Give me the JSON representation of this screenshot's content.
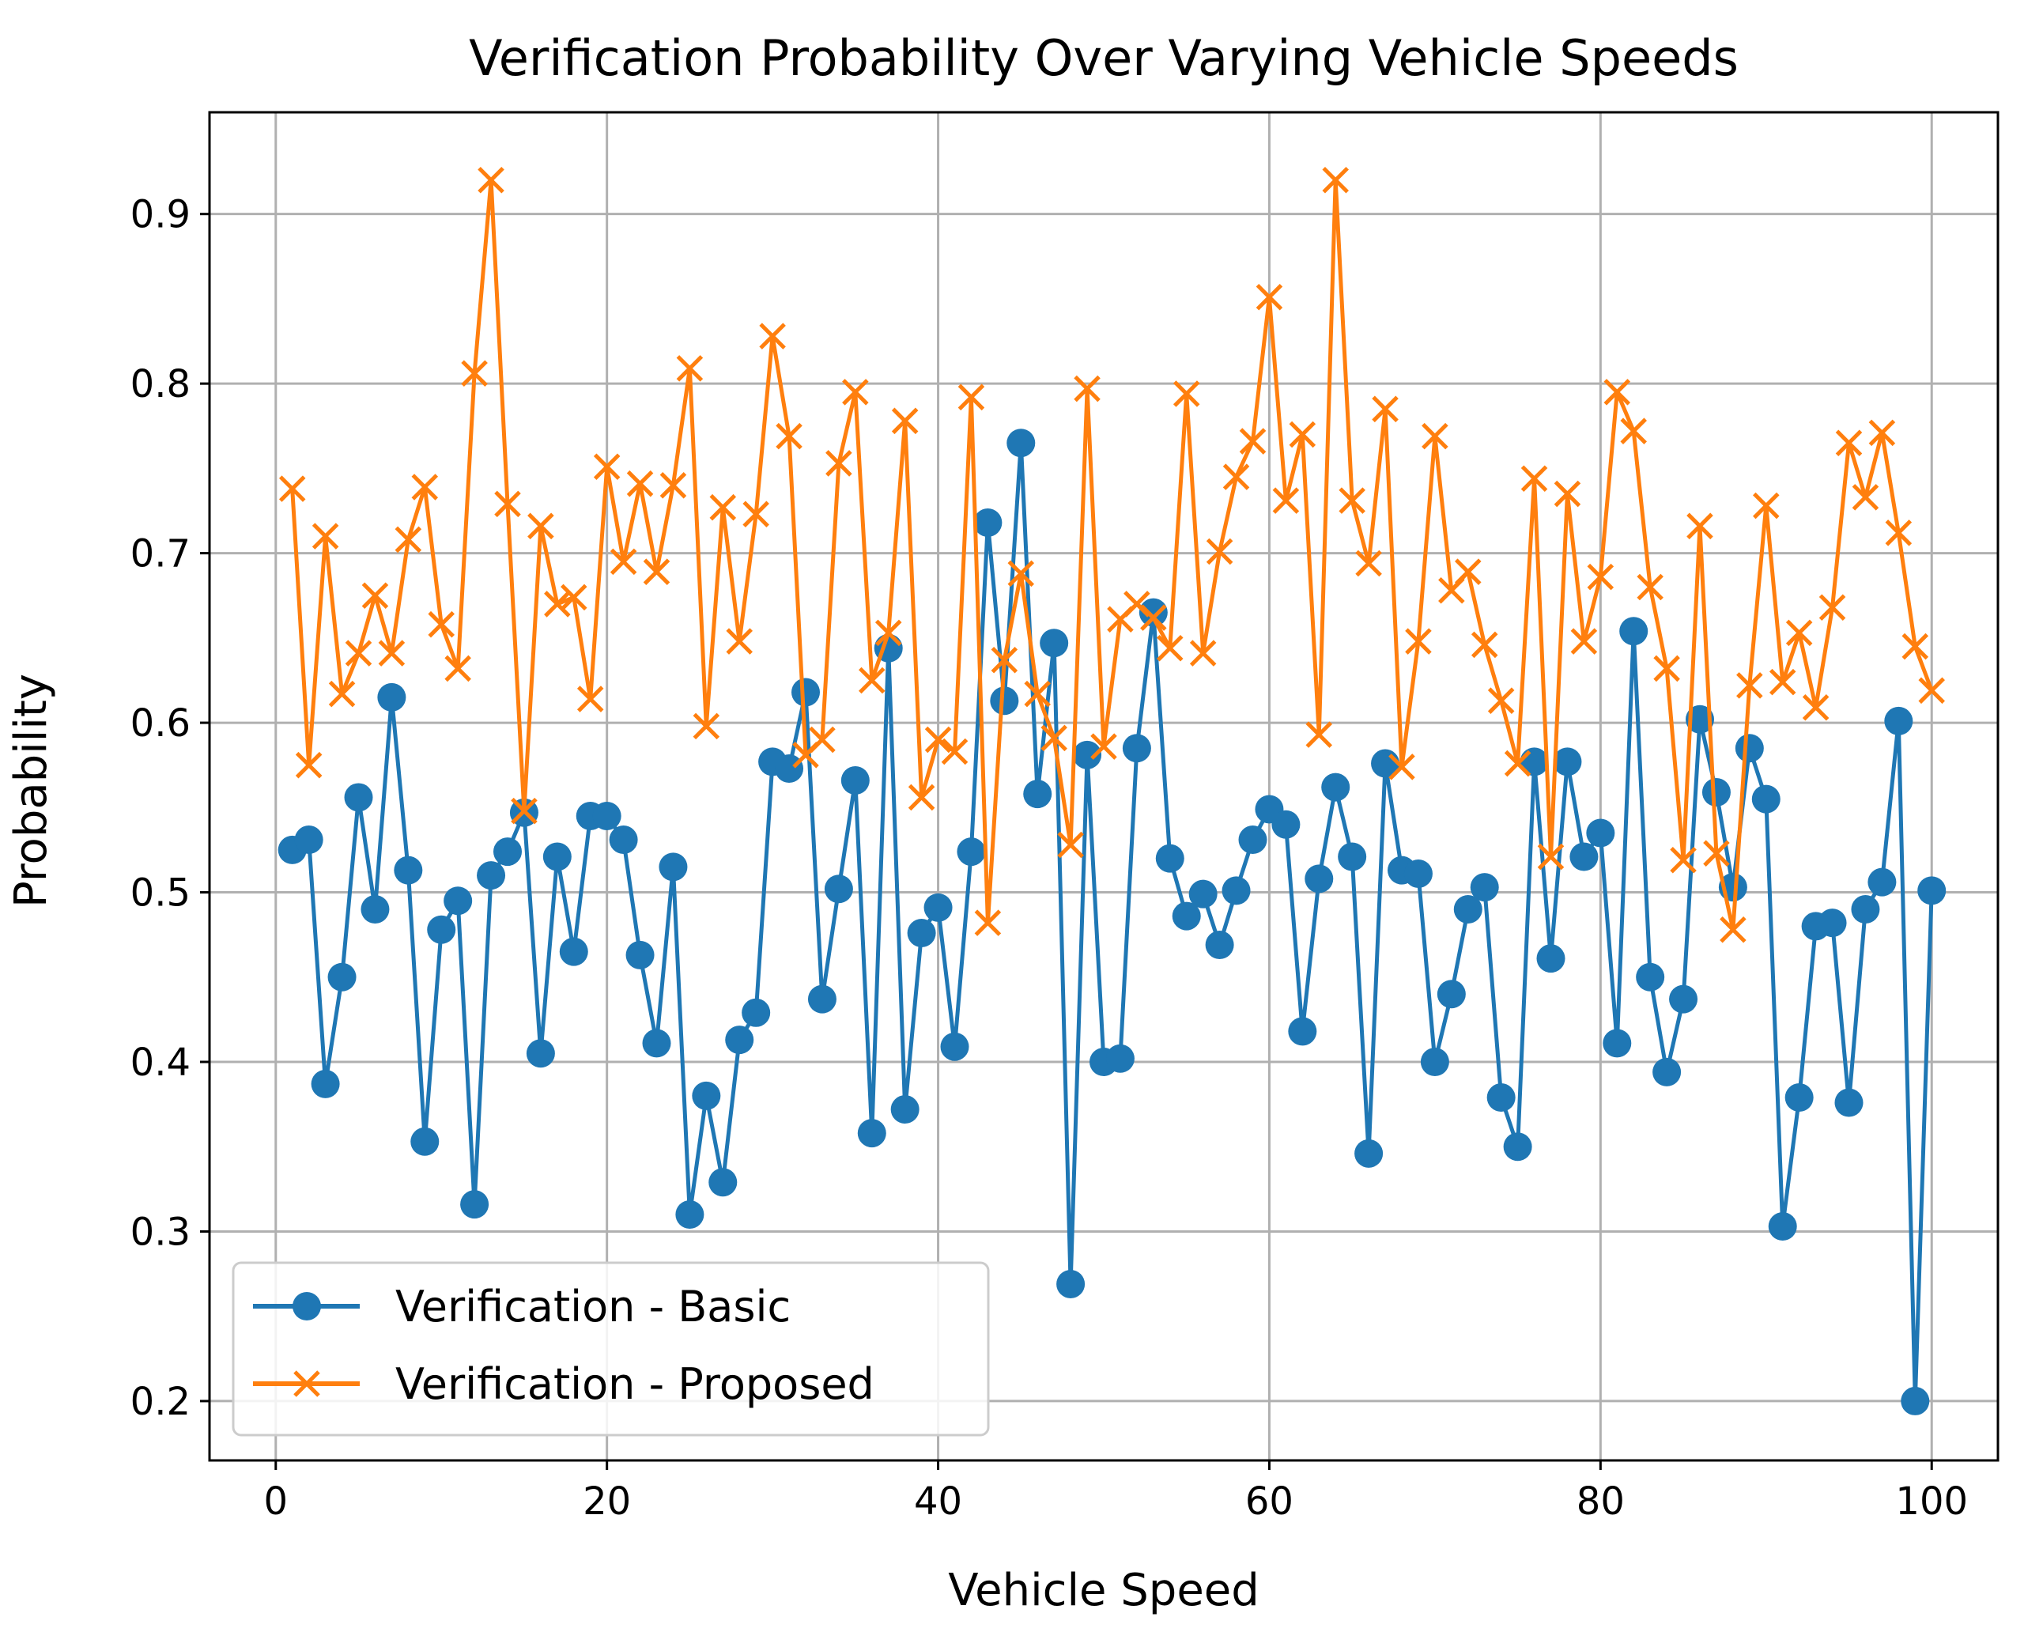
{
  "chart_data": {
    "type": "line",
    "title": "Verification Probability Over Varying Vehicle Speeds",
    "xlabel": "Vehicle Speed",
    "ylabel": "Probability",
    "xlim": [
      -4,
      104
    ],
    "ylim": [
      0.165,
      0.96
    ],
    "xticks": [
      0,
      20,
      40,
      60,
      80,
      100
    ],
    "yticks": [
      0.2,
      0.3,
      0.4,
      0.5,
      0.6,
      0.7,
      0.8,
      0.9
    ],
    "xtick_labels": [
      "0",
      "20",
      "40",
      "60",
      "80",
      "100"
    ],
    "ytick_labels": [
      "0.2",
      "0.3",
      "0.4",
      "0.5",
      "0.6",
      "0.7",
      "0.8",
      "0.9"
    ],
    "grid": true,
    "legend_position": "lower-left",
    "x": [
      1,
      2,
      3,
      4,
      5,
      6,
      7,
      8,
      9,
      10,
      11,
      12,
      13,
      14,
      15,
      16,
      17,
      18,
      19,
      20,
      21,
      22,
      23,
      24,
      25,
      26,
      27,
      28,
      29,
      30,
      31,
      32,
      33,
      34,
      35,
      36,
      37,
      38,
      39,
      40,
      41,
      42,
      43,
      44,
      45,
      46,
      47,
      48,
      49,
      50,
      51,
      52,
      53,
      54,
      55,
      56,
      57,
      58,
      59,
      60,
      61,
      62,
      63,
      64,
      65,
      66,
      67,
      68,
      69,
      70,
      71,
      72,
      73,
      74,
      75,
      76,
      77,
      78,
      79,
      80,
      81,
      82,
      83,
      84,
      85,
      86,
      87,
      88,
      89,
      90,
      91,
      92,
      93,
      94,
      95,
      96,
      97,
      98,
      99,
      100
    ],
    "series": [
      {
        "name": "Verification - Basic",
        "color": "#1f77b4",
        "marker": "circle",
        "values": [
          0.525,
          0.531,
          0.387,
          0.45,
          0.556,
          0.49,
          0.615,
          0.513,
          0.353,
          0.478,
          0.495,
          0.316,
          0.51,
          0.524,
          0.547,
          0.405,
          0.521,
          0.465,
          0.545,
          0.545,
          0.531,
          0.463,
          0.411,
          0.515,
          0.31,
          0.38,
          0.329,
          0.413,
          0.429,
          0.577,
          0.573,
          0.618,
          0.437,
          0.502,
          0.566,
          0.358,
          0.644,
          0.372,
          0.476,
          0.491,
          0.409,
          0.524,
          0.718,
          0.613,
          0.765,
          0.558,
          0.647,
          0.269,
          0.581,
          0.4,
          0.402,
          0.585,
          0.665,
          0.52,
          0.486,
          0.499,
          0.469,
          0.501,
          0.531,
          0.549,
          0.54,
          0.418,
          0.508,
          0.562,
          0.521,
          0.346,
          0.576,
          0.513,
          0.511,
          0.4,
          0.44,
          0.49,
          0.503,
          0.379,
          0.35,
          0.577,
          0.461,
          0.577,
          0.521,
          0.535,
          0.411,
          0.654,
          0.45,
          0.394,
          0.437,
          0.602,
          0.559,
          0.503,
          0.585,
          0.555,
          0.303,
          0.379,
          0.48,
          0.482,
          0.376,
          0.49,
          0.506,
          0.601,
          0.2,
          0.501
        ]
      },
      {
        "name": "Verification - Proposed",
        "color": "#ff7f0e",
        "marker": "x",
        "values": [
          0.738,
          0.575,
          0.71,
          0.617,
          0.641,
          0.675,
          0.641,
          0.708,
          0.739,
          0.658,
          0.632,
          0.806,
          0.92,
          0.729,
          0.548,
          0.716,
          0.67,
          0.674,
          0.614,
          0.751,
          0.695,
          0.741,
          0.689,
          0.74,
          0.809,
          0.598,
          0.727,
          0.648,
          0.723,
          0.828,
          0.769,
          0.581,
          0.59,
          0.753,
          0.795,
          0.625,
          0.653,
          0.778,
          0.556,
          0.59,
          0.583,
          0.792,
          0.482,
          0.637,
          0.688,
          0.617,
          0.591,
          0.528,
          0.797,
          0.586,
          0.661,
          0.67,
          0.662,
          0.644,
          0.794,
          0.641,
          0.701,
          0.745,
          0.766,
          0.851,
          0.731,
          0.77,
          0.593,
          0.92,
          0.731,
          0.694,
          0.785,
          0.574,
          0.648,
          0.769,
          0.678,
          0.689,
          0.646,
          0.613,
          0.576,
          0.744,
          0.521,
          0.735,
          0.648,
          0.686,
          0.795,
          0.772,
          0.68,
          0.632,
          0.519,
          0.716,
          0.523,
          0.478,
          0.622,
          0.728,
          0.624,
          0.653,
          0.609,
          0.668,
          0.765,
          0.733,
          0.771,
          0.712,
          0.645,
          0.619
        ]
      }
    ]
  }
}
